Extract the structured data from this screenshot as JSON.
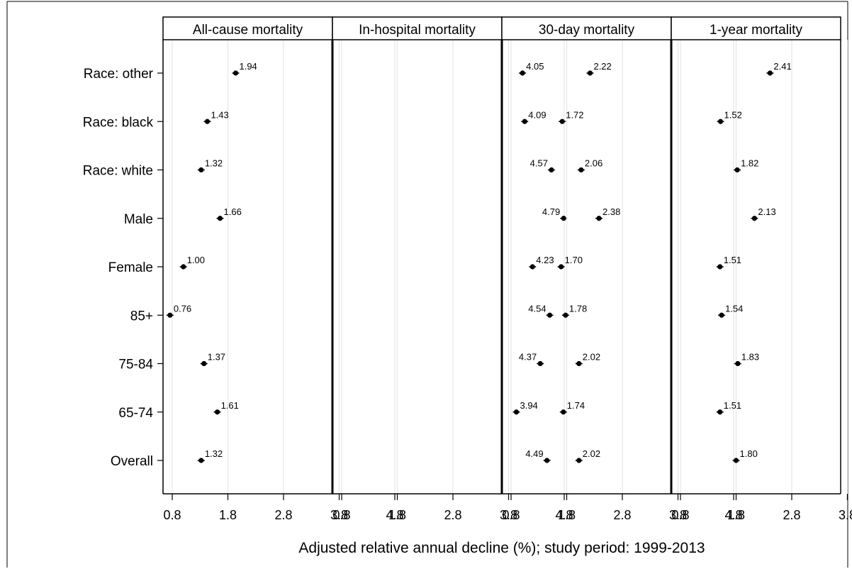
{
  "chart_data": {
    "type": "scatter",
    "xlabel": "Adjusted relative annual decline (%); study period: 1999-2013",
    "ylabel": "",
    "categories": [
      "Race: other",
      "Race: black",
      "Race: white",
      "Male",
      "Female",
      "85+",
      "75-84",
      "65-74",
      "Overall"
    ],
    "xlim": [
      0.6,
      5.1
    ],
    "xticks": [
      0.8,
      1.8,
      2.8,
      3.8,
      4.8
    ],
    "xtick_labels": [
      "0.8",
      "1.8",
      "2.8",
      "3.8",
      "4.8"
    ],
    "grid": "vertical",
    "panels": [
      {
        "title": "All-cause mortality",
        "values": [
          1.94,
          1.43,
          1.32,
          1.66,
          1.0,
          0.76,
          1.37,
          1.61,
          1.32
        ],
        "value_labels": [
          "1.94",
          "1.43",
          "1.32",
          "1.66",
          "1.00",
          "0.76",
          "1.37",
          "1.61",
          "1.32"
        ],
        "label_side": [
          "right",
          "right",
          "right",
          "right",
          "right",
          "right",
          "right",
          "right",
          "right"
        ]
      },
      {
        "title": "In-hospital mortality",
        "values": [
          4.05,
          4.09,
          4.57,
          4.79,
          4.23,
          4.54,
          4.37,
          3.94,
          4.49
        ],
        "value_labels": [
          "4.05",
          "4.09",
          "4.57",
          "4.79",
          "4.23",
          "4.54",
          "4.37",
          "3.94",
          "4.49"
        ],
        "label_side": [
          "right",
          "right",
          "left",
          "left",
          "right",
          "left",
          "left",
          "right",
          "left"
        ]
      },
      {
        "title": "30-day mortality",
        "values": [
          2.22,
          1.72,
          2.06,
          2.38,
          1.7,
          1.78,
          2.02,
          1.74,
          2.02
        ],
        "value_labels": [
          "2.22",
          "1.72",
          "2.06",
          "2.38",
          "1.70",
          "1.78",
          "2.02",
          "1.74",
          "2.02"
        ],
        "label_side": [
          "right",
          "right",
          "right",
          "right",
          "right",
          "right",
          "right",
          "right",
          "right"
        ]
      },
      {
        "title": "1-year mortality",
        "values": [
          2.41,
          1.52,
          1.82,
          2.13,
          1.51,
          1.54,
          1.83,
          1.51,
          1.8
        ],
        "value_labels": [
          "2.41",
          "1.52",
          "1.82",
          "2.13",
          "1.51",
          "1.54",
          "1.83",
          "1.51",
          "1.80"
        ],
        "label_side": [
          "right",
          "right",
          "right",
          "right",
          "right",
          "right",
          "right",
          "right",
          "right"
        ]
      }
    ]
  }
}
